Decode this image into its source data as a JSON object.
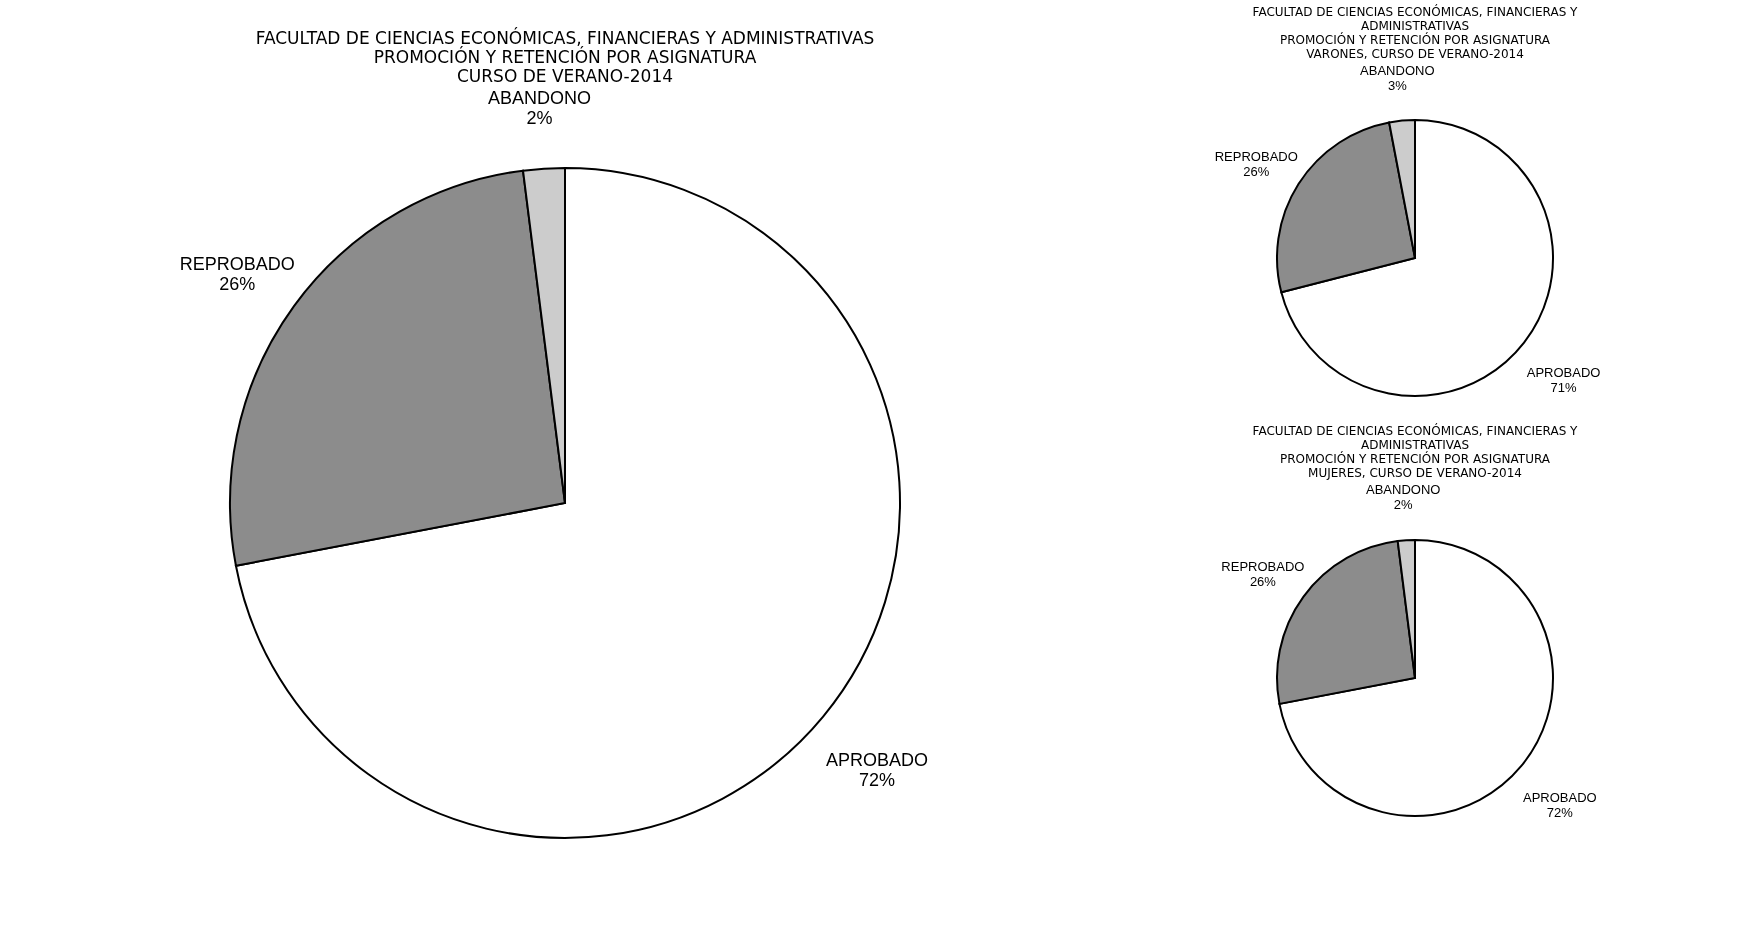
{
  "chart_data": [
    {
      "type": "pie",
      "title": "FACULTAD DE CIENCIAS ECONÓMICAS, FINANCIERAS Y ADMINISTRATIVAS\nPROMOCIÓN Y RETENCIÓN POR ASIGNATURA\nCURSO DE VERANO-2014",
      "categories": [
        "APROBADO",
        "REPROBADO",
        "ABANDONO"
      ],
      "values": [
        72,
        26,
        2
      ],
      "value_labels": [
        "72%",
        "26%",
        "2%"
      ],
      "colors": [
        "#ffffff",
        "#8c8c8c",
        "#cccccc"
      ],
      "legend": false
    },
    {
      "type": "pie",
      "title": "FACULTAD DE CIENCIAS ECONÓMICAS, FINANCIERAS Y\nADMINISTRATIVAS\nPROMOCIÓN Y RETENCIÓN POR ASIGNATURA\nVARONES, CURSO DE VERANO-2014",
      "categories": [
        "APROBADO",
        "REPROBADO",
        "ABANDONO"
      ],
      "values": [
        71,
        26,
        3
      ],
      "value_labels": [
        "71%",
        "26%",
        "3%"
      ],
      "colors": [
        "#ffffff",
        "#8c8c8c",
        "#cccccc"
      ],
      "legend": false
    },
    {
      "type": "pie",
      "title": "FACULTAD DE CIENCIAS ECONÓMICAS, FINANCIERAS Y\nADMINISTRATIVAS\nPROMOCIÓN Y RETENCIÓN POR ASIGNATURA\nMUJERES, CURSO DE VERANO-2014",
      "categories": [
        "APROBADO",
        "REPROBADO",
        "ABANDONO"
      ],
      "values": [
        72,
        26,
        2
      ],
      "value_labels": [
        "72%",
        "26%",
        "2%"
      ],
      "colors": [
        "#ffffff",
        "#8c8c8c",
        "#cccccc"
      ],
      "legend": false
    }
  ]
}
